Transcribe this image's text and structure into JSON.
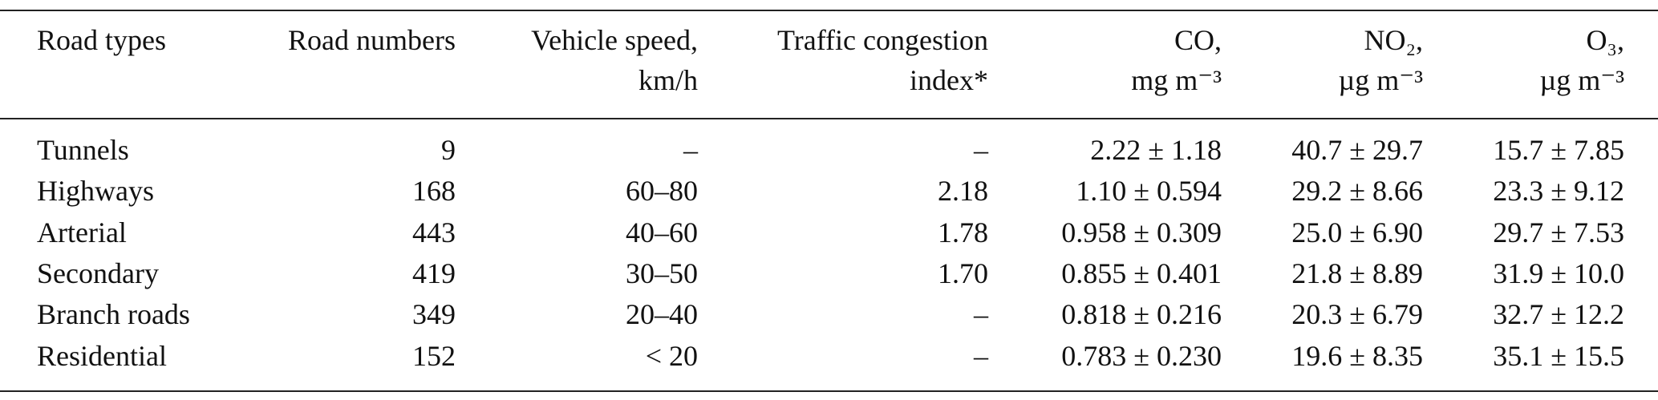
{
  "table": {
    "header": [
      [
        "Road types"
      ],
      [
        "Road numbers"
      ],
      [
        "Vehicle speed,",
        "km/h"
      ],
      [
        "Traffic congestion",
        "index*"
      ],
      [
        "CO,",
        "mg m⁻³"
      ],
      [
        "NO₂,",
        "µg m⁻³"
      ],
      [
        "O₃,",
        "µg m⁻³"
      ]
    ],
    "rows": [
      [
        "Tunnels",
        "9",
        "–",
        "–",
        "2.22 ± 1.18",
        "40.7 ± 29.7",
        "15.7 ± 7.85"
      ],
      [
        "Highways",
        "168",
        "60–80",
        "2.18",
        "1.10 ± 0.594",
        "29.2 ± 8.66",
        "23.3 ± 9.12"
      ],
      [
        "Arterial",
        "443",
        "40–60",
        "1.78",
        "0.958 ± 0.309",
        "25.0 ± 6.90",
        "29.7 ± 7.53"
      ],
      [
        "Secondary",
        "419",
        "30–50",
        "1.70",
        "0.855 ± 0.401",
        "21.8 ± 8.89",
        "31.9 ± 10.0"
      ],
      [
        "Branch roads",
        "349",
        "20–40",
        "–",
        "0.818 ± 0.216",
        "20.3 ± 6.79",
        "32.7 ± 12.2"
      ],
      [
        "Residential",
        "152",
        "< 20",
        "–",
        "0.783 ± 0.230",
        "19.6 ± 8.35",
        "35.1 ± 15.5"
      ]
    ]
  }
}
